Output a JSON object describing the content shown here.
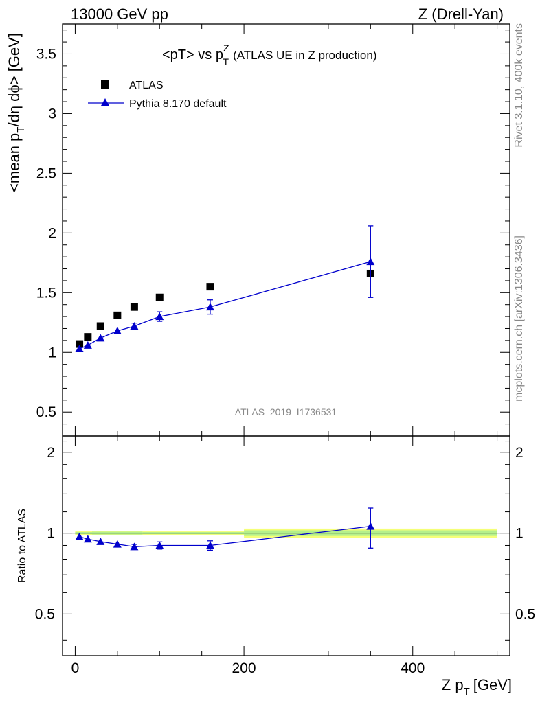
{
  "header": {
    "left": "13000 GeV pp",
    "right": "Z (Drell-Yan)"
  },
  "side_labels": {
    "rivet": "Rivet 3.1.10,  400k events",
    "mcplots": "mcplots.cern.ch [arXiv:1306.3436]"
  },
  "chart_data": [
    {
      "type": "scatter",
      "panel": "main",
      "title": {
        "prefix": "<pT> vs p",
        "sup": "Z",
        "sub": "T",
        "suffix": "(ATLAS UE in Z production)"
      },
      "ylabel": {
        "part1": "<mean p",
        "sub1": "T",
        "part2": "/dη dϕ> [GeV]"
      },
      "analysis_id": "ATLAS_2019_I1736531",
      "xlim": [
        -15,
        515
      ],
      "ylim": [
        0.3,
        3.75
      ],
      "yticks": [
        0.5,
        1,
        1.5,
        2,
        2.5,
        3,
        3.5
      ],
      "ytick_labels": [
        "0.5",
        "1",
        "1.5",
        "2",
        "2.5",
        "3",
        "3.5"
      ],
      "legend_position": "top-left",
      "series": [
        {
          "name": "ATLAS",
          "marker": "square",
          "color": "#000000",
          "x": [
            5,
            15,
            30,
            50,
            70,
            100,
            160,
            350
          ],
          "y": [
            1.07,
            1.13,
            1.22,
            1.31,
            1.38,
            1.46,
            1.55,
            1.66
          ]
        },
        {
          "name": "Pythia 8.170 default",
          "marker": "triangle",
          "color": "#0000cc",
          "line": true,
          "x": [
            5,
            15,
            30,
            50,
            70,
            100,
            160,
            350
          ],
          "y": [
            1.03,
            1.06,
            1.12,
            1.18,
            1.22,
            1.3,
            1.38,
            1.76
          ],
          "yerr": [
            0.01,
            0.01,
            0.015,
            0.02,
            0.025,
            0.04,
            0.06,
            0.3
          ]
        }
      ]
    },
    {
      "type": "scatter",
      "panel": "ratio",
      "ylabel": "Ratio to ATLAS",
      "xlabel": {
        "part1": "Z p",
        "sub": "T",
        "part2": "[GeV]"
      },
      "xlim": [
        -15,
        515
      ],
      "xticks": [
        0,
        200,
        400
      ],
      "xtick_labels": [
        "0",
        "200",
        "400"
      ],
      "ylim": [
        0.35,
        2.3
      ],
      "yscale": "log",
      "yticks": [
        0.5,
        1,
        2
      ],
      "ytick_labels": [
        "0.5",
        "1",
        "2"
      ],
      "reference_line": 1,
      "uncertainty_bands": [
        {
          "x0": 0,
          "x1": 20,
          "lo": 0.985,
          "hi": 1.015
        },
        {
          "x0": 20,
          "x1": 80,
          "lo": 0.98,
          "hi": 1.02
        },
        {
          "x0": 80,
          "x1": 200,
          "lo": 0.985,
          "hi": 1.015
        },
        {
          "x0": 200,
          "x1": 500,
          "lo": 0.96,
          "hi": 1.04
        }
      ],
      "band_colors": {
        "inner": "#b4f08c",
        "outer": "#f5ff78"
      },
      "series": [
        {
          "name": "Pythia 8.170 default",
          "marker": "triangle",
          "color": "#0000cc",
          "line": true,
          "x": [
            5,
            15,
            30,
            50,
            70,
            100,
            160,
            350
          ],
          "y": [
            0.97,
            0.95,
            0.93,
            0.91,
            0.89,
            0.9,
            0.9,
            1.06
          ],
          "yerr": [
            0.01,
            0.01,
            0.012,
            0.015,
            0.018,
            0.028,
            0.036,
            0.18
          ]
        }
      ]
    }
  ]
}
